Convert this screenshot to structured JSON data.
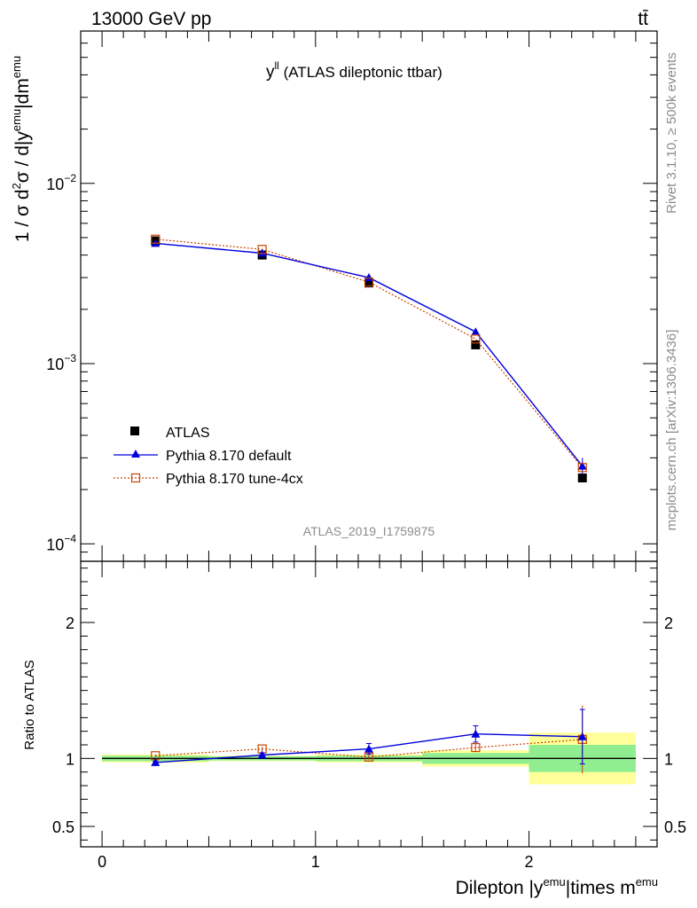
{
  "header": {
    "left": "13000 GeV pp",
    "right": "tt̄"
  },
  "title": {
    "main": "y",
    "sup": "ll",
    "rest": " (ATLAS dileptonic ttbar)"
  },
  "side_labels": {
    "top": "Rivet 3.1.10, ≥ 500k events",
    "bottom": "mcplots.cern.ch [arXiv:1306.3436]"
  },
  "watermark": "ATLAS_2019_I1759875",
  "ylabel": {
    "p1": "1 / σ  d",
    "s1": "2",
    "p2": "σ / d|y",
    "s2": "emu",
    "p3": "|dm",
    "s3": "emu"
  },
  "xlabel": {
    "p1": "Dilepton |y",
    "s1": "emu",
    "p2": "|times m",
    "s2": "emu"
  },
  "ratio_ylabel": "Ratio to ATLAS",
  "legend": [
    {
      "label": "ATLAS"
    },
    {
      "label": "Pythia 8.170 default"
    },
    {
      "label": "Pythia 8.170 tune-4cx"
    }
  ],
  "colors": {
    "atlas": "#000000",
    "default": "#0000dd",
    "tune": "#cc4400",
    "band_inner": "#90ee90",
    "band_outer": "#ffff99"
  },
  "chart_data": {
    "type": "line",
    "upper": {
      "yscale": "log",
      "ylim": [
        8e-05,
        0.07
      ],
      "ytick_labels": [
        {
          "base": "10",
          "exp": "−2",
          "value": 0.01
        },
        {
          "base": "10",
          "exp": "−3",
          "value": 0.001
        },
        {
          "base": "10",
          "exp": "−4",
          "value": 0.0001
        }
      ]
    },
    "xlim": [
      -0.1,
      2.6
    ],
    "xticks": [
      {
        "label": "0",
        "value": 0
      },
      {
        "label": "1",
        "value": 1
      },
      {
        "label": "2",
        "value": 2
      }
    ],
    "x": [
      0.25,
      0.75,
      1.25,
      1.75,
      2.25
    ],
    "bins": [
      [
        0,
        0.5
      ],
      [
        0.5,
        1.0
      ],
      [
        1.0,
        1.5
      ],
      [
        1.5,
        2.0
      ],
      [
        2.0,
        2.5
      ]
    ],
    "series": [
      {
        "name": "ATLAS",
        "values": [
          0.0048,
          0.004,
          0.0028,
          0.00127,
          0.000232
        ]
      },
      {
        "name": "Pythia 8.170 default",
        "values": [
          0.00465,
          0.0041,
          0.003,
          0.0015,
          0.00027
        ],
        "errors": [
          3e-05,
          3e-05,
          5e-05,
          6e-05,
          3e-05
        ]
      },
      {
        "name": "Pythia 8.170 tune-4cx",
        "values": [
          0.0049,
          0.0043,
          0.00283,
          0.00137,
          0.000265
        ]
      }
    ],
    "ratio": {
      "ylim": [
        0.35,
        2.45
      ],
      "ytick_labels": [
        {
          "label": "2",
          "value": 2
        },
        {
          "label": "1",
          "value": 1
        },
        {
          "label": "0.5",
          "value": 0.5
        }
      ],
      "default": [
        0.97,
        1.025,
        1.07,
        1.18,
        1.16
      ],
      "default_err": [
        0.01,
        0.015,
        0.04,
        0.06,
        0.2
      ],
      "tune": [
        1.02,
        1.07,
        1.01,
        1.08,
        1.14
      ],
      "tune_err": [
        0.01,
        0.015,
        0.02,
        0.03,
        0.25
      ],
      "band_inner": [
        0.02,
        0.015,
        0.02,
        0.04,
        0.1
      ],
      "band_outer": [
        0.03,
        0.02,
        0.03,
        0.06,
        0.19
      ]
    }
  }
}
